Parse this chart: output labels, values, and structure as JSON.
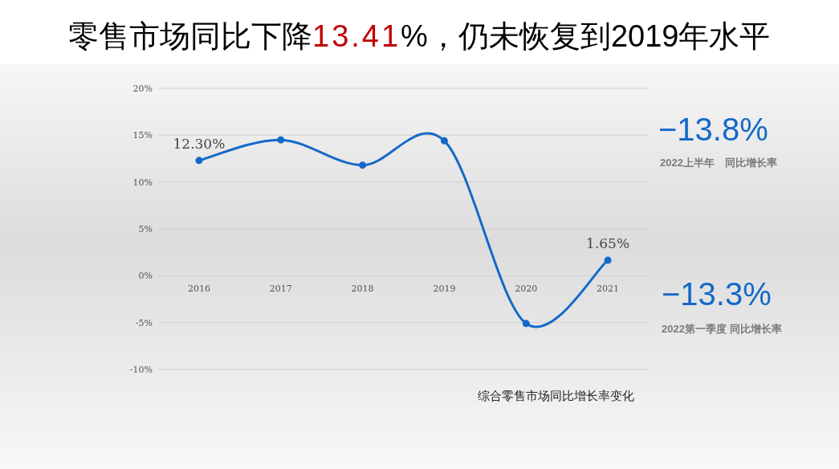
{
  "chart_data": {
    "type": "line",
    "title": "零售市场同比下降13.41%，仍未恢复到2019年水平",
    "categories": [
      "2016",
      "2017",
      "2018",
      "2019",
      "2020",
      "2021"
    ],
    "series": [
      {
        "color": "#1469c8",
        "values": [
          12.3,
          14.5,
          11.8,
          14.4,
          -5.1,
          1.65
        ],
        "value_labels": [
          "12.30%",
          null,
          null,
          null,
          null,
          "1.65%"
        ]
      }
    ],
    "ylim": [
      -10,
      20
    ],
    "yticks": [
      {
        "value": -10,
        "label": "-10%"
      },
      {
        "value": -5,
        "label": "-5%"
      },
      {
        "value": 0,
        "label": "0%"
      },
      {
        "value": 5,
        "label": "5%"
      },
      {
        "value": 10,
        "label": "10%"
      },
      {
        "value": 15,
        "label": "15%"
      },
      {
        "value": 20,
        "label": "20%"
      }
    ],
    "grid": "y",
    "marker": "circle",
    "line_style": "solid",
    "annotations": [
      "−13.8%",
      "2022上半年　同比增长率",
      "−13.3%",
      "2022第一季度 同比增长率",
      "综合零售市场同比增长率变化"
    ]
  }
}
